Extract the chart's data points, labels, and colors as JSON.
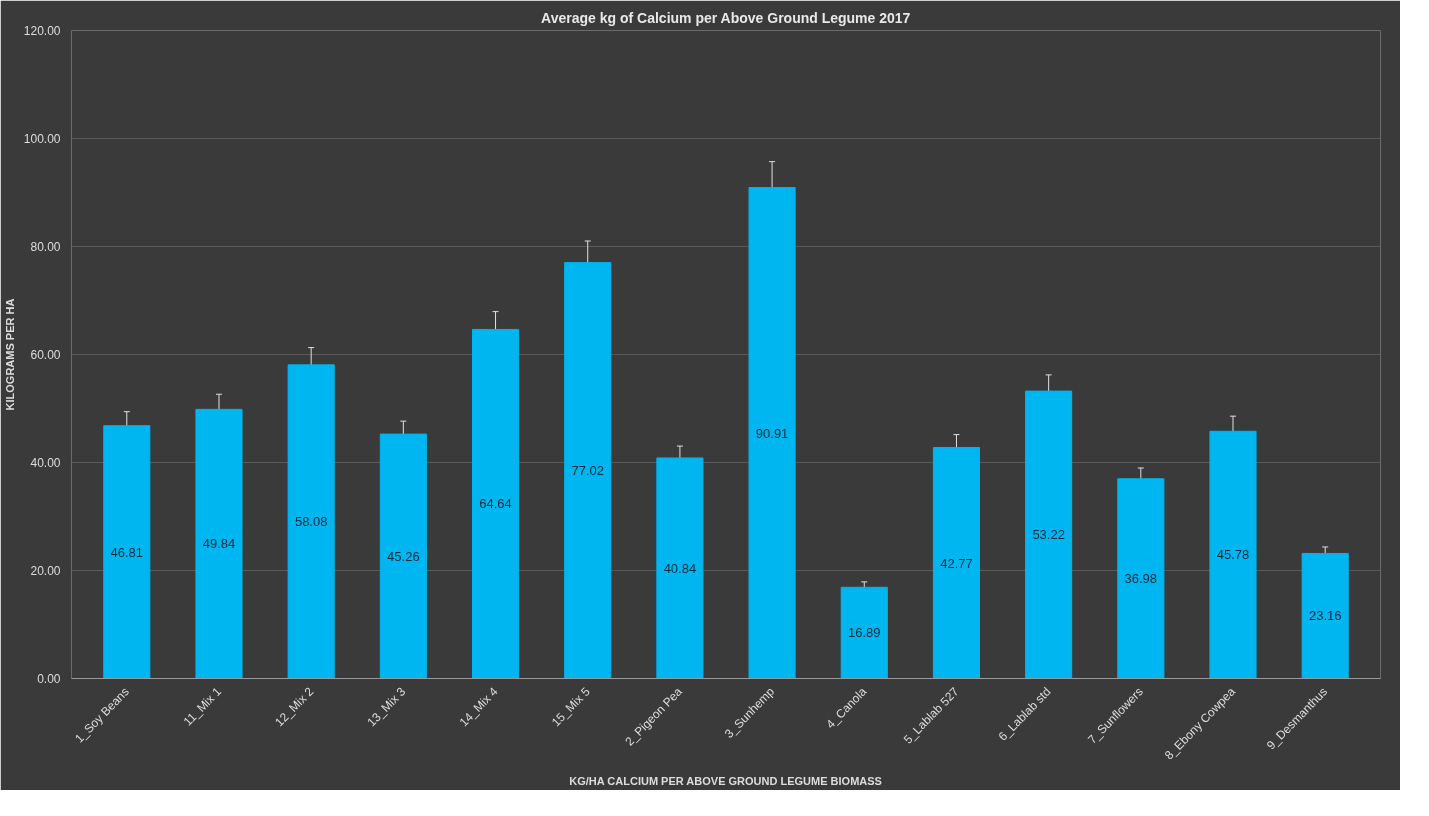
{
  "chart_data": {
    "type": "bar",
    "title": "Average kg of Calcium per Above Ground Legume 2017",
    "xlabel": "KG/HA CALCIUM PER ABOVE GROUND LEGUME BIOMASS",
    "ylabel": "KILOGRAMS PER HA",
    "categories": [
      "1_Soy Beans",
      "11_Mix 1",
      "12_Mix 2",
      "13_Mix 3",
      "14_Mix 4",
      "15_Mix 5",
      "2_Pigeon Pea",
      "3_Sunhemp",
      "4_Canola",
      "5_Lablab 527",
      "6_Lablab std",
      "7_Sunflowers",
      "8_Ebony Cowpea",
      "9_Desmanthus"
    ],
    "values": [
      46.81,
      49.84,
      58.08,
      45.26,
      64.64,
      77.02,
      40.84,
      90.91,
      16.89,
      42.77,
      53.22,
      36.98,
      45.78,
      23.16
    ],
    "errors": [
      2.6,
      2.8,
      3.2,
      2.4,
      3.3,
      4,
      2.2,
      4.8,
      1,
      2.4,
      3,
      2,
      2.8,
      1.2
    ],
    "color": "#00b6f0",
    "data_labels": true,
    "grid": "y",
    "ylim": [
      0,
      120
    ],
    "yticks": [
      {
        "value": 0,
        "label": "0.00"
      },
      {
        "value": 20,
        "label": "20.00"
      },
      {
        "value": 40,
        "label": "40.00"
      },
      {
        "value": 60,
        "label": "60.00"
      },
      {
        "value": 80,
        "label": "80.00"
      },
      {
        "value": 100,
        "label": "100.00"
      },
      {
        "value": 120,
        "label": "120.00"
      }
    ]
  }
}
